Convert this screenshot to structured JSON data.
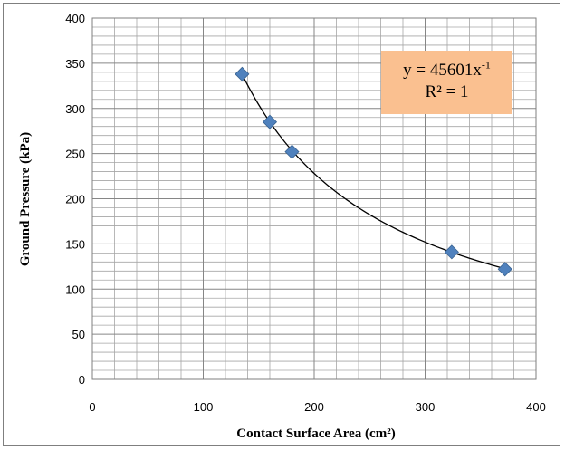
{
  "chart_data": {
    "type": "scatter",
    "title": "",
    "xlabel": "Contact Surface Area (cm²)",
    "ylabel": "Ground Pressure (kPa)",
    "xlim": [
      0,
      400
    ],
    "ylim": [
      0,
      400
    ],
    "x_ticks": [
      "0",
      "100",
      "200",
      "300",
      "400"
    ],
    "y_ticks": [
      "0",
      "50",
      "100",
      "150",
      "200",
      "250",
      "300",
      "350",
      "400"
    ],
    "grid": true,
    "legend": "none",
    "marker_color": "#4f81bd",
    "trendline_color": "#000000",
    "series": [
      {
        "x": [
          135,
          160,
          180,
          324,
          372
        ],
        "y": [
          338,
          285,
          252,
          141,
          122
        ]
      }
    ],
    "trendline": {
      "type": "power",
      "coefficient": 45601,
      "exponent": -1,
      "x_range": [
        135,
        372
      ]
    },
    "annotation": {
      "equation_prefix": "y = 45601x",
      "equation_exponent": "-1",
      "r_squared": "R² = 1",
      "background": "#fac090"
    }
  }
}
